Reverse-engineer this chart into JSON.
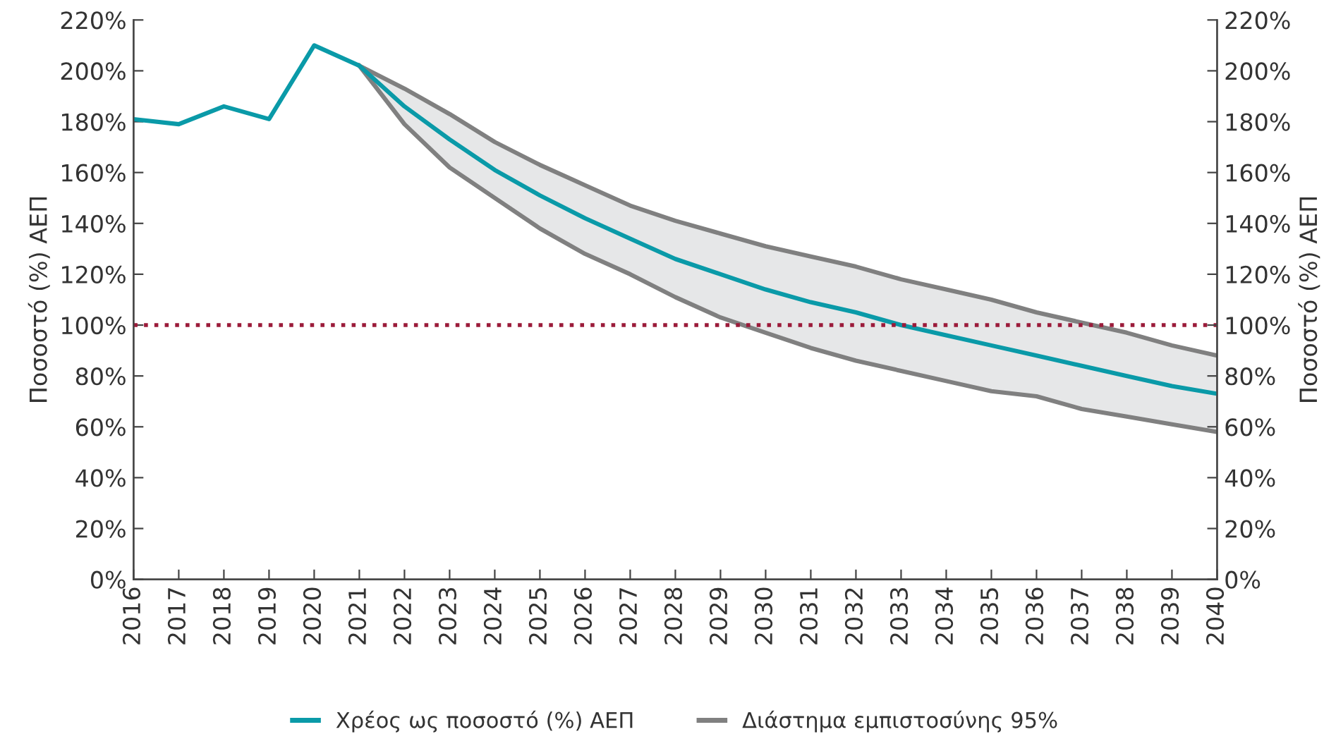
{
  "chart_data": {
    "type": "line",
    "ylabel": "Ποσοστό (%) ΑΕΠ",
    "y2label": "Ποσοστό (%) ΑΕΠ",
    "categories": [
      "2016",
      "2017",
      "2018",
      "2019",
      "2020",
      "2021",
      "2022",
      "2023",
      "2024",
      "2025",
      "2026",
      "2027",
      "2028",
      "2029",
      "2030",
      "2031",
      "2032",
      "2033",
      "2034",
      "2035",
      "2036",
      "2037",
      "2038",
      "2039",
      "2040"
    ],
    "series": [
      {
        "name": "Χρέος ως ποσοστό (%) ΑΕΠ",
        "color": "#0a9aa8",
        "values": [
          181,
          179,
          186,
          181,
          210,
          202,
          186,
          173,
          161,
          151,
          142,
          134,
          126,
          120,
          114,
          109,
          105,
          100,
          96,
          92,
          88,
          84,
          80,
          76,
          73
        ],
        "lower": [
          null,
          null,
          null,
          null,
          null,
          202,
          179,
          162,
          150,
          138,
          128,
          120,
          111,
          103,
          97,
          91,
          86,
          82,
          78,
          74,
          72,
          67,
          64,
          61,
          58
        ],
        "upper": [
          null,
          null,
          null,
          null,
          null,
          202,
          193,
          183,
          172,
          163,
          155,
          147,
          141,
          136,
          131,
          127,
          123,
          118,
          114,
          110,
          105,
          101,
          97,
          92,
          88
        ]
      },
      {
        "name": "Διάστημα εμπιστοσύνης 95%",
        "color": "#808080",
        "values": [
          null,
          null,
          null,
          null,
          null,
          202,
          193,
          183,
          172,
          163,
          155,
          147,
          141,
          136,
          131,
          127,
          123,
          118,
          114,
          110,
          105,
          101,
          97,
          92,
          88
        ]
      },
      {
        "color": "#808080",
        "values": [
          null,
          null,
          null,
          null,
          null,
          202,
          179,
          162,
          150,
          138,
          128,
          120,
          111,
          103,
          97,
          91,
          86,
          82,
          78,
          74,
          72,
          67,
          64,
          61,
          58
        ]
      }
    ],
    "ylim": [
      0,
      220
    ],
    "yticks": [
      {
        "value": 0,
        "label": "0%"
      },
      {
        "value": 20,
        "label": "20%"
      },
      {
        "value": 40,
        "label": "40%"
      },
      {
        "value": 60,
        "label": "60%"
      },
      {
        "value": 80,
        "label": "80%"
      },
      {
        "value": 100,
        "label": "100%"
      },
      {
        "value": 120,
        "label": "120%"
      },
      {
        "value": 140,
        "label": "140%"
      },
      {
        "value": 160,
        "label": "160%"
      },
      {
        "value": 180,
        "label": "180%"
      },
      {
        "value": 200,
        "label": "200%"
      },
      {
        "value": 220,
        "label": "220%"
      }
    ],
    "y2lim": [
      0,
      220
    ],
    "y2ticks": [
      {
        "value": 0,
        "label": "0%"
      },
      {
        "value": 20,
        "label": "20%"
      },
      {
        "value": 40,
        "label": "40%"
      },
      {
        "value": 60,
        "label": "60%"
      },
      {
        "value": 80,
        "label": "80%"
      },
      {
        "value": 100,
        "label": "100%"
      },
      {
        "value": 120,
        "label": "120%"
      },
      {
        "value": 140,
        "label": "140%"
      },
      {
        "value": 160,
        "label": "160%"
      },
      {
        "value": 180,
        "label": "180%"
      },
      {
        "value": 200,
        "label": "200%"
      },
      {
        "value": 220,
        "label": "220%"
      }
    ],
    "ref_lines": [
      {
        "axis": "y",
        "value": 100,
        "color": "#9b1b3a",
        "line_style": "dotted"
      }
    ],
    "grid": false,
    "legend": "bottom",
    "line_style": "solid",
    "marker": "none"
  }
}
